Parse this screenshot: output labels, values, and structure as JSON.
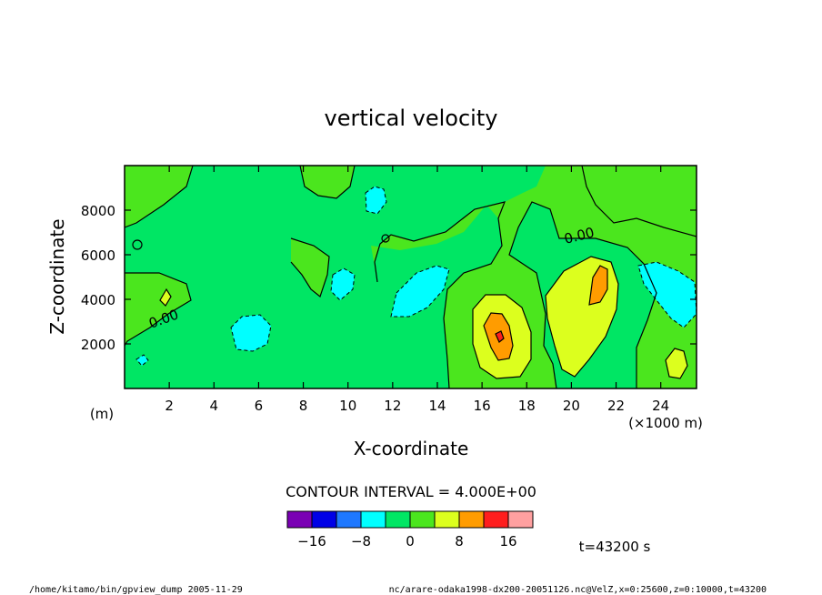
{
  "chart_data": {
    "type": "heatmap",
    "title": "vertical velocity",
    "xlabel": "X-coordinate",
    "ylabel": "Z-coordinate",
    "x_unit": "(×1000 m)",
    "y_unit": "(m)",
    "xlim": [
      0,
      25.6
    ],
    "ylim": [
      0,
      10000
    ],
    "x_ticks": [
      2,
      4,
      6,
      8,
      10,
      12,
      14,
      16,
      18,
      20,
      22,
      24
    ],
    "y_ticks": [
      2000,
      4000,
      6000,
      8000
    ],
    "contour_interval_label": "CONTOUR INTERVAL = 4.000E+00",
    "contour_labels": [
      "0.00",
      "0.00"
    ],
    "colorbar": {
      "colors": [
        "#7a00b4",
        "#0000e6",
        "#1e78ff",
        "#00ffff",
        "#00e664",
        "#4be61e",
        "#dcff1e",
        "#ff9c00",
        "#ff1e1e",
        "#ffa0a0"
      ],
      "tick_labels": [
        "-16",
        "-8",
        "0",
        "8",
        "16"
      ],
      "tick_values": [
        -16,
        -8,
        0,
        8,
        16
      ]
    },
    "time_label": "t=43200 s",
    "footer_left": "/home/kitamo/bin/gpview_dump  2005-11-29",
    "footer_right": "nc/arare-odaka1998-dx200-20051126.nc@VelZ,x=0:25600,z=0:10000,t=43200",
    "background_level": 0
  }
}
